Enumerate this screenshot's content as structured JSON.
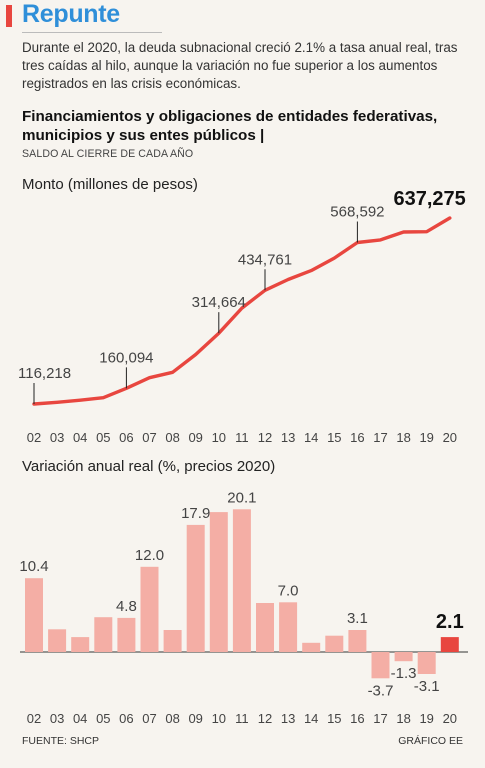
{
  "header": {
    "brand": "Repunte",
    "intro": "Durante el 2020, la deuda subnacional creció 2.1% a tasa anual real, tras tres caídas al hilo, aunque la variación no fue superior a los aumentos registrados en las crisis económicas.",
    "title": "Financiamientos y obligaciones de entidades federativas, municipios y sus entes públicos |",
    "subtitle": "SALDO AL CIERRE DE CADA AÑO"
  },
  "footer": {
    "source": "FUENTE: SHCP",
    "credit": "GRÁFICO EE"
  },
  "colors": {
    "brand": "#2f8fd9",
    "accent": "#e8463f",
    "line": "#e8463f",
    "bar": "#f4aea5",
    "bar_highlight": "#e8463f"
  },
  "chart_data": [
    {
      "type": "line",
      "title": "Monto (millones de pesos)",
      "x": [
        "02",
        "03",
        "04",
        "05",
        "06",
        "07",
        "08",
        "09",
        "10",
        "11",
        "12",
        "13",
        "14",
        "15",
        "16",
        "17",
        "18",
        "19",
        "20"
      ],
      "values": [
        116218,
        121000,
        127000,
        134000,
        160094,
        190000,
        205000,
        255000,
        314664,
        385000,
        434761,
        465000,
        490000,
        525000,
        568592,
        576000,
        598000,
        599000,
        637275
      ],
      "labels": [
        {
          "x": "02",
          "value": 116218,
          "text": "116,218"
        },
        {
          "x": "06",
          "value": 160094,
          "text": "160,094"
        },
        {
          "x": "10",
          "value": 314664,
          "text": "314,664"
        },
        {
          "x": "12",
          "value": 434761,
          "text": "434,761"
        },
        {
          "x": "16",
          "value": 568592,
          "text": "568,592"
        },
        {
          "x": "20",
          "value": 637275,
          "text": "637,275",
          "highlight": true
        }
      ],
      "grid": false,
      "legend": "none"
    },
    {
      "type": "bar",
      "title": "Variación anual real (%, precios 2020)",
      "categories": [
        "02",
        "03",
        "04",
        "05",
        "06",
        "07",
        "08",
        "09",
        "10",
        "11",
        "12",
        "13",
        "14",
        "15",
        "16",
        "17",
        "18",
        "19",
        "20"
      ],
      "values": [
        10.4,
        3.2,
        2.1,
        4.9,
        4.8,
        12.0,
        3.1,
        17.9,
        19.7,
        20.1,
        6.9,
        7.0,
        1.3,
        2.3,
        3.1,
        -3.7,
        -1.3,
        -3.1,
        2.1
      ],
      "labels": [
        {
          "category": "02",
          "value": 10.4,
          "text": "10.4"
        },
        {
          "category": "06",
          "value": 4.8,
          "text": "4.8"
        },
        {
          "category": "07",
          "value": 12.0,
          "text": "12.0"
        },
        {
          "category": "09",
          "value": 17.9,
          "text": "17.9"
        },
        {
          "category": "11",
          "value": 20.1,
          "text": "20.1"
        },
        {
          "category": "13",
          "value": 7.0,
          "text": "7.0"
        },
        {
          "category": "16",
          "value": 3.1,
          "text": "3.1"
        },
        {
          "category": "17",
          "value": -3.7,
          "text": "-3.7"
        },
        {
          "category": "18",
          "value": -1.3,
          "text": "-1.3"
        },
        {
          "category": "19",
          "value": -3.1,
          "text": "-3.1"
        },
        {
          "category": "20",
          "value": 2.1,
          "text": "2.1",
          "highlight": true
        }
      ],
      "grid": false,
      "legend": "none"
    }
  ]
}
